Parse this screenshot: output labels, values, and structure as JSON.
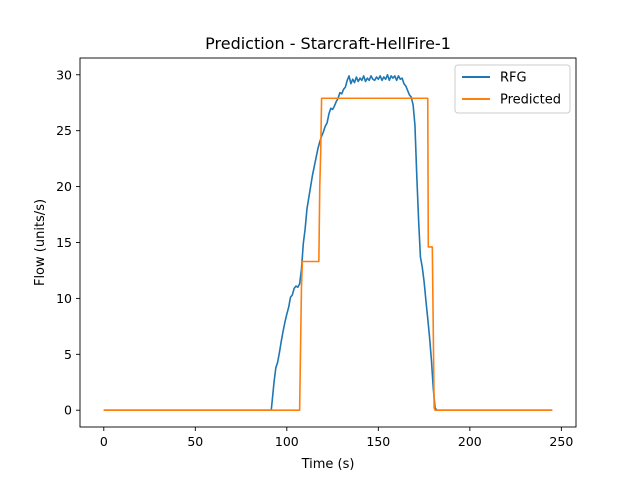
{
  "chart_data": {
    "type": "line",
    "title": "Prediction - Starcraft-HellFire-1",
    "xlabel": "Time (s)",
    "ylabel": "Flow (units/s)",
    "xlim": [
      -13,
      258
    ],
    "ylim": [
      -1.5,
      31.5
    ],
    "xticks": [
      0,
      50,
      100,
      150,
      200,
      250
    ],
    "yticks": [
      0,
      5,
      10,
      15,
      20,
      25,
      30
    ],
    "grid": false,
    "legend_position": "top-right",
    "series": [
      {
        "name": "RFG",
        "color": "#1f77b4",
        "points": [
          [
            0,
            0
          ],
          [
            91.5,
            0
          ],
          [
            93,
            2.5
          ],
          [
            94,
            3.8
          ],
          [
            95,
            4.3
          ],
          [
            96,
            5.2
          ],
          [
            97,
            6.2
          ],
          [
            98,
            7.1
          ],
          [
            99,
            7.9
          ],
          [
            100,
            8.6
          ],
          [
            101,
            9.2
          ],
          [
            102,
            10.1
          ],
          [
            103,
            10.3
          ],
          [
            104,
            10.9
          ],
          [
            105,
            11.1
          ],
          [
            106,
            11.0
          ],
          [
            107,
            11.3
          ],
          [
            108,
            12.6
          ],
          [
            109,
            14.9
          ],
          [
            110,
            16.2
          ],
          [
            111,
            18.0
          ],
          [
            112,
            19.0
          ],
          [
            113,
            20.0
          ],
          [
            114,
            21.0
          ],
          [
            115,
            21.8
          ],
          [
            116,
            22.6
          ],
          [
            117,
            23.4
          ],
          [
            118,
            24.0
          ],
          [
            119,
            24.5
          ],
          [
            120,
            24.9
          ],
          [
            121,
            25.4
          ],
          [
            122,
            25.7
          ],
          [
            123,
            26.5
          ],
          [
            124,
            27.0
          ],
          [
            125,
            26.9
          ],
          [
            126,
            27.2
          ],
          [
            127,
            27.6
          ],
          [
            128,
            27.9
          ],
          [
            129,
            28.4
          ],
          [
            130,
            28.3
          ],
          [
            131,
            28.7
          ],
          [
            132,
            28.9
          ],
          [
            133,
            29.5
          ],
          [
            134,
            29.9
          ],
          [
            135,
            29.2
          ],
          [
            136,
            29.6
          ],
          [
            137,
            29.3
          ],
          [
            138,
            29.8
          ],
          [
            139,
            29.4
          ],
          [
            140,
            29.7
          ],
          [
            141,
            29.5
          ],
          [
            142,
            29.9
          ],
          [
            143,
            29.4
          ],
          [
            144,
            29.7
          ],
          [
            145,
            29.5
          ],
          [
            146,
            29.9
          ],
          [
            147,
            29.6
          ],
          [
            148,
            29.5
          ],
          [
            149,
            29.8
          ],
          [
            150,
            29.6
          ],
          [
            151,
            29.9
          ],
          [
            152,
            29.5
          ],
          [
            153,
            29.8
          ],
          [
            154,
            29.6
          ],
          [
            155,
            30.0
          ],
          [
            156,
            29.5
          ],
          [
            157,
            29.9
          ],
          [
            158,
            29.7
          ],
          [
            159,
            29.9
          ],
          [
            160,
            29.5
          ],
          [
            161,
            29.9
          ],
          [
            162,
            29.6
          ],
          [
            163,
            29.7
          ],
          [
            164,
            29.2
          ],
          [
            165,
            29.0
          ],
          [
            166,
            28.6
          ],
          [
            167,
            28.2
          ],
          [
            168,
            28.0
          ],
          [
            169,
            27.3
          ],
          [
            170,
            25.5
          ],
          [
            171,
            21.0
          ],
          [
            172,
            17.0
          ],
          [
            173,
            13.7
          ],
          [
            174,
            12.8
          ],
          [
            175,
            11.5
          ],
          [
            176,
            9.8
          ],
          [
            177,
            8.2
          ],
          [
            178,
            6.5
          ],
          [
            179,
            4.5
          ],
          [
            180,
            2.0
          ],
          [
            181,
            0.2
          ],
          [
            182,
            0
          ],
          [
            245,
            0
          ]
        ]
      },
      {
        "name": "Predicted",
        "color": "#ff7f0e",
        "points": [
          [
            0,
            0
          ],
          [
            107,
            0
          ],
          [
            108,
            11.0
          ],
          [
            108.5,
            13.3
          ],
          [
            117.5,
            13.3
          ],
          [
            118,
            20.0
          ],
          [
            118.5,
            23.0
          ],
          [
            119,
            27.9
          ],
          [
            177,
            27.9
          ],
          [
            177.3,
            14.6
          ],
          [
            179.5,
            14.6
          ],
          [
            180.5,
            0.2
          ],
          [
            181,
            0
          ],
          [
            245,
            0
          ]
        ]
      }
    ]
  }
}
